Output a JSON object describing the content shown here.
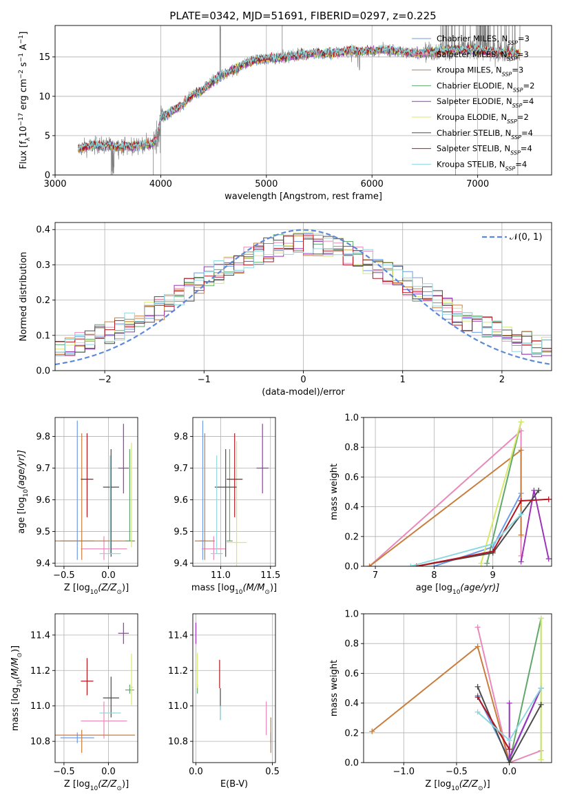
{
  "figure": {
    "title": "PLATE=0342, MJD=51691, FIBERID=0297, z=0.225"
  },
  "colors": {
    "Chabrier MILES": "#6b9ae8",
    "Salpeter MILES": "#e889b9",
    "Kroupa MILES": "#c87d3a",
    "Chabrier ELODIE": "#5fa86a",
    "Salpeter ELODIE": "#9b33b9",
    "Kroupa ELODIE": "#d8e86a",
    "Chabrier STELIB": "#4a4a4a",
    "Salpeter STELIB": "#b3141b",
    "Kroupa STELIB": "#8dd7e0",
    "data": "#7f7f7f",
    "gauss": "#5b88d8",
    "grid": "#b0b0b0"
  },
  "chart_data": [
    {
      "id": "spectrum",
      "type": "line",
      "xlabel": "wavelength [Angstrom, rest frame]",
      "ylabel_parts": [
        "Flux [f",
        "λ",
        "10",
        "−17",
        " erg cm",
        "−2",
        " s",
        "−1",
        " A",
        "−1",
        "]"
      ],
      "xlim": [
        3000,
        7700
      ],
      "ylim": [
        0,
        19
      ],
      "xticks": [
        3000,
        4000,
        5000,
        6000,
        7000
      ],
      "yticks": [
        0,
        5,
        10,
        15
      ],
      "grid": true,
      "legend_position": "top-right",
      "legend": [
        {
          "name": "Chabrier MILES",
          "n": "3"
        },
        {
          "name": "Salpeter MILES",
          "n": "3"
        },
        {
          "name": "Kroupa MILES",
          "n": "3"
        },
        {
          "name": "Chabrier ELODIE",
          "n": "2"
        },
        {
          "name": "Salpeter ELODIE",
          "n": "4"
        },
        {
          "name": "Kroupa ELODIE",
          "n": "2"
        },
        {
          "name": "Chabrier STELIB",
          "n": "4"
        },
        {
          "name": "Salpeter STELIB",
          "n": "4"
        },
        {
          "name": "Kroupa STELIB",
          "n": "4"
        }
      ],
      "continuum": [
        [
          3220,
          3.3
        ],
        [
          3300,
          3.6
        ],
        [
          3400,
          3.8
        ],
        [
          3500,
          3.7
        ],
        [
          3600,
          3.7
        ],
        [
          3700,
          3.6
        ],
        [
          3800,
          3.8
        ],
        [
          3900,
          3.8
        ],
        [
          3960,
          4.5
        ],
        [
          4000,
          7.2
        ],
        [
          4100,
          8.0
        ],
        [
          4200,
          8.8
        ],
        [
          4300,
          10.2
        ],
        [
          4400,
          10.8
        ],
        [
          4500,
          12.0
        ],
        [
          4600,
          12.8
        ],
        [
          4700,
          13.4
        ],
        [
          4800,
          14.2
        ],
        [
          4900,
          14.6
        ],
        [
          5000,
          14.8
        ],
        [
          5100,
          14.9
        ],
        [
          5200,
          15.0
        ],
        [
          5300,
          15.2
        ],
        [
          5400,
          15.4
        ],
        [
          5500,
          15.5
        ],
        [
          5600,
          15.5
        ],
        [
          5700,
          15.6
        ],
        [
          5800,
          15.8
        ],
        [
          5900,
          15.7
        ],
        [
          6000,
          15.8
        ],
        [
          6100,
          15.9
        ],
        [
          6200,
          15.8
        ],
        [
          6300,
          15.6
        ],
        [
          6400,
          15.5
        ],
        [
          6500,
          15.6
        ],
        [
          6600,
          15.7
        ],
        [
          6700,
          15.8
        ],
        [
          6800,
          15.9
        ],
        [
          6900,
          15.9
        ],
        [
          7000,
          15.8
        ],
        [
          7100,
          15.7
        ],
        [
          7200,
          15.6
        ],
        [
          7300,
          15.5
        ],
        [
          7400,
          15.3
        ]
      ]
    },
    {
      "id": "residuals",
      "type": "step",
      "xlabel": "(data-model)/error",
      "ylabel": "Normed distribution",
      "xlim": [
        -2.5,
        2.5
      ],
      "ylim": [
        0,
        0.42
      ],
      "xticks": [
        -2,
        -1,
        0,
        1,
        2
      ],
      "xtick_labels": [
        "−2",
        "−1",
        "0",
        "1",
        "2"
      ],
      "yticks": [
        0.0,
        0.1,
        0.2,
        0.3,
        0.4
      ],
      "ytick_labels": [
        "0.0",
        "0.1",
        "0.2",
        "0.3",
        "0.4"
      ],
      "grid": true,
      "legend_position": "top-right",
      "legend_label": "𝒩(0, 1)",
      "bin_width": 0.1
    },
    {
      "id": "age-vs-Z",
      "type": "errorbar",
      "xlabel_parts": [
        "Z [log",
        "10",
        "(Z/Z",
        "⊙",
        ")]"
      ],
      "ylabel_parts": [
        "age  [log",
        "10",
        "(age/yr)]"
      ],
      "xlim": [
        -0.6,
        0.33
      ],
      "ylim": [
        9.39,
        9.86
      ],
      "xticks": [
        -0.5,
        0.0
      ],
      "xtick_labels": [
        "−0.5",
        "0.0"
      ],
      "yticks": [
        9.4,
        9.5,
        9.6,
        9.7,
        9.8
      ],
      "ytick_labels": [
        "9.4",
        "9.5",
        "9.6",
        "9.7",
        "9.8"
      ],
      "grid": true,
      "points": [
        {
          "model": "Chabrier MILES",
          "x": -0.35,
          "xerr": 0.19,
          "y": 9.47,
          "yerr": [
            0.06,
            0.38
          ]
        },
        {
          "model": "Salpeter MILES",
          "x": -0.05,
          "xerr": 0.26,
          "y": 9.445,
          "yerr": [
            0.035,
            0.04
          ]
        },
        {
          "model": "Kroupa MILES",
          "x": -0.3,
          "xerr": 0.6,
          "y": 9.47,
          "yerr": [
            0.06,
            0.34
          ]
        },
        {
          "model": "Chabrier ELODIE",
          "x": 0.24,
          "xerr": 0.05,
          "y": 9.47,
          "yerr": [
            0.0,
            0.29
          ]
        },
        {
          "model": "Salpeter ELODIE",
          "x": 0.17,
          "xerr": 0.06,
          "y": 9.7,
          "yerr": [
            0.08,
            0.14
          ]
        },
        {
          "model": "Kroupa ELODIE",
          "x": 0.26,
          "xerr": 0.02,
          "y": 9.7,
          "yerr": [
            0.25,
            0.08
          ]
        },
        {
          "model": "Chabrier STELIB",
          "x": 0.03,
          "xerr": 0.09,
          "y": 9.64,
          "yerr": [
            0.22,
            0.12
          ]
        },
        {
          "model": "Salpeter STELIB",
          "x": -0.24,
          "xerr": 0.07,
          "y": 9.665,
          "yerr": [
            0.12,
            0.145
          ]
        },
        {
          "model": "Kroupa STELIB",
          "x": 0.02,
          "xerr": 0.12,
          "y": 9.43,
          "yerr": [
            0.0,
            0.31
          ]
        }
      ]
    },
    {
      "id": "age-vs-mass",
      "type": "errorbar",
      "xlabel_parts": [
        "mass [log",
        "10",
        "(M/M",
        "⊙",
        ")]"
      ],
      "xlim": [
        10.72,
        11.55
      ],
      "ylim": [
        9.39,
        9.86
      ],
      "xticks": [
        11.0,
        11.5
      ],
      "xtick_labels": [
        "11.0",
        "11.5"
      ],
      "yticks": [
        9.4,
        9.5,
        9.6,
        9.7,
        9.8
      ],
      "ytick_labels": [
        "9.4",
        "9.5",
        "9.6",
        "9.7",
        "9.8"
      ],
      "grid": true,
      "points": [
        {
          "model": "Chabrier MILES",
          "x": 10.82,
          "xerr": 0.03,
          "y": 9.47,
          "yerr": [
            0.06,
            0.38
          ]
        },
        {
          "model": "Salpeter MILES",
          "x": 10.93,
          "xerr": 0.12,
          "y": 9.445,
          "yerr": [
            0.035,
            0.04
          ]
        },
        {
          "model": "Kroupa MILES",
          "x": 10.84,
          "xerr": 0.1,
          "y": 9.47,
          "yerr": [
            0.06,
            0.34
          ]
        },
        {
          "model": "Chabrier ELODIE",
          "x": 11.09,
          "xerr": 0.03,
          "y": 9.47,
          "yerr": [
            0.0,
            0.29
          ]
        },
        {
          "model": "Salpeter ELODIE",
          "x": 11.42,
          "xerr": 0.06,
          "y": 9.7,
          "yerr": [
            0.08,
            0.14
          ]
        },
        {
          "model": "Kroupa ELODIE",
          "x": 11.16,
          "xerr": 0.1,
          "y": 9.465,
          "yerr": [
            0.24,
            0.32
          ]
        },
        {
          "model": "Chabrier STELIB",
          "x": 11.05,
          "xerr": 0.11,
          "y": 9.64,
          "yerr": [
            0.22,
            0.12
          ]
        },
        {
          "model": "Salpeter STELIB",
          "x": 11.14,
          "xerr": 0.08,
          "y": 9.665,
          "yerr": [
            0.12,
            0.145
          ]
        },
        {
          "model": "Kroupa STELIB",
          "x": 10.96,
          "xerr": 0.06,
          "y": 9.43,
          "yerr": [
            0.0,
            0.31
          ]
        }
      ]
    },
    {
      "id": "weight-vs-age",
      "type": "line",
      "xlabel_parts": [
        "age  [log",
        "10",
        "(age/yr)]"
      ],
      "ylabel": "mass weight",
      "xlim": [
        6.8,
        10.0
      ],
      "ylim": [
        0.0,
        1.0
      ],
      "xticks": [
        7,
        8,
        9
      ],
      "xtick_labels": [
        "7",
        "8",
        "9"
      ],
      "yticks": [
        0.0,
        0.2,
        0.4,
        0.6,
        0.8,
        1.0
      ],
      "ytick_labels": [
        "0.0",
        "0.2",
        "0.4",
        "0.6",
        "0.8",
        "1.0"
      ],
      "grid": true,
      "series": [
        {
          "model": "Chabrier MILES",
          "x": [
            8.0,
            9.0,
            9.48
          ],
          "y": [
            0.0,
            0.13,
            0.49
          ]
        },
        {
          "model": "Salpeter MILES",
          "x": [
            6.9,
            9.48,
            9.48
          ],
          "y": [
            0.0,
            0.91,
            0.07
          ]
        },
        {
          "model": "Kroupa MILES",
          "x": [
            6.9,
            9.48,
            9.48
          ],
          "y": [
            0.0,
            0.78,
            0.21
          ]
        },
        {
          "model": "Chabrier ELODIE",
          "x": [
            8.9,
            9.48
          ],
          "y": [
            0.02,
            0.97
          ]
        },
        {
          "model": "Salpeter ELODIE",
          "x": [
            9.48,
            9.7,
            9.95
          ],
          "y": [
            0.03,
            0.51,
            0.05
          ]
        },
        {
          "model": "Kroupa ELODIE",
          "x": [
            8.8,
            9.48
          ],
          "y": [
            0.02,
            0.97
          ]
        },
        {
          "model": "Chabrier STELIB",
          "x": [
            7.7,
            9.0,
            9.78
          ],
          "y": [
            0.0,
            0.09,
            0.51
          ]
        },
        {
          "model": "Salpeter STELIB",
          "x": [
            7.7,
            9.0,
            9.48,
            9.95
          ],
          "y": [
            0.0,
            0.1,
            0.44,
            0.45
          ]
        },
        {
          "model": "Kroupa STELIB",
          "x": [
            7.6,
            9.0,
            9.48
          ],
          "y": [
            0.0,
            0.15,
            0.35
          ]
        }
      ]
    },
    {
      "id": "mass-vs-Z",
      "type": "errorbar",
      "xlabel_parts": [
        "Z [log",
        "10",
        "(Z/Z",
        "⊙",
        ")]"
      ],
      "ylabel_parts": [
        "mass [log",
        "10",
        "(M/M",
        "⊙",
        ")]"
      ],
      "xlim": [
        -0.6,
        0.33
      ],
      "ylim": [
        10.68,
        11.52
      ],
      "xticks": [
        -0.5,
        0.0
      ],
      "xtick_labels": [
        "−0.5",
        "0.0"
      ],
      "yticks": [
        10.8,
        11.0,
        11.2,
        11.4
      ],
      "ytick_labels": [
        "10.8",
        "11.0",
        "11.2",
        "11.4"
      ],
      "grid": true,
      "points": [
        {
          "model": "Chabrier MILES",
          "x": -0.35,
          "xerr": 0.19,
          "y": 10.82,
          "yerr": [
            0.03,
            0.03
          ]
        },
        {
          "model": "Salpeter MILES",
          "x": -0.05,
          "xerr": 0.26,
          "y": 10.915,
          "yerr": [
            0.1,
            0.11
          ]
        },
        {
          "model": "Kroupa MILES",
          "x": -0.3,
          "xerr": 0.6,
          "y": 10.835,
          "yerr": [
            0.1,
            0.03
          ]
        },
        {
          "model": "Chabrier ELODIE",
          "x": 0.24,
          "xerr": 0.05,
          "y": 11.09,
          "yerr": [
            0.02,
            0.03
          ]
        },
        {
          "model": "Salpeter ELODIE",
          "x": 0.17,
          "xerr": 0.06,
          "y": 11.41,
          "yerr": [
            0.06,
            0.06
          ]
        },
        {
          "model": "Kroupa ELODIE",
          "x": 0.26,
          "xerr": 0.02,
          "y": 11.105,
          "yerr": [
            0.1,
            0.19
          ]
        },
        {
          "model": "Chabrier STELIB",
          "x": 0.03,
          "xerr": 0.09,
          "y": 11.045,
          "yerr": [
            0.11,
            0.12
          ]
        },
        {
          "model": "Salpeter STELIB",
          "x": -0.24,
          "xerr": 0.07,
          "y": 11.14,
          "yerr": [
            0.08,
            0.13
          ]
        },
        {
          "model": "Kroupa STELIB",
          "x": 0.02,
          "xerr": 0.12,
          "y": 10.96,
          "yerr": [
            0.0,
            0.0
          ]
        }
      ]
    },
    {
      "id": "mass-vs-EBV",
      "type": "errorbar",
      "xlabel": "E(B-V)",
      "xlim": [
        -0.02,
        0.52
      ],
      "ylim": [
        10.68,
        11.52
      ],
      "xticks": [
        0.0,
        0.5
      ],
      "xtick_labels": [
        "0.0",
        "0.5"
      ],
      "yticks": [
        10.8,
        11.0,
        11.2,
        11.4
      ],
      "ytick_labels": [
        "10.8",
        "11.0",
        "11.2",
        "11.4"
      ],
      "grid": true,
      "points": [
        {
          "model": "Chabrier MILES",
          "x": 0.49,
          "xerr": 0.0,
          "y": 10.82,
          "yerr": [
            0.03,
            0.03
          ]
        },
        {
          "model": "Salpeter MILES",
          "x": 0.46,
          "xerr": 0.0,
          "y": 10.915,
          "yerr": [
            0.08,
            0.11
          ]
        },
        {
          "model": "Kroupa MILES",
          "x": 0.49,
          "xerr": 0.0,
          "y": 10.835,
          "yerr": [
            0.1,
            0.1
          ]
        },
        {
          "model": "Chabrier ELODIE",
          "x": 0.01,
          "xerr": 0.0,
          "y": 11.09,
          "yerr": [
            0.02,
            0.03
          ]
        },
        {
          "model": "Salpeter ELODIE",
          "x": 0.0,
          "xerr": 0.0,
          "y": 11.41,
          "yerr": [
            0.06,
            0.06
          ]
        },
        {
          "model": "Kroupa ELODIE",
          "x": 0.01,
          "xerr": 0.0,
          "y": 11.2,
          "yerr": [
            0.1,
            0.1
          ]
        },
        {
          "model": "Chabrier STELIB",
          "x": 0.16,
          "xerr": 0.0,
          "y": 11.0,
          "yerr": [
            0.08,
            0.1
          ]
        },
        {
          "model": "Salpeter STELIB",
          "x": 0.155,
          "xerr": 0.0,
          "y": 11.18,
          "yerr": [
            0.08,
            0.08
          ]
        },
        {
          "model": "Kroupa STELIB",
          "x": 0.16,
          "xerr": 0.0,
          "y": 10.96,
          "yerr": [
            0.04,
            0.04
          ]
        }
      ]
    },
    {
      "id": "weight-vs-Z",
      "type": "line",
      "xlabel_parts": [
        "Z [log",
        "10",
        "(Z/Z",
        "⊙",
        ")]"
      ],
      "ylabel": "mass weight",
      "xlim": [
        -1.38,
        0.4
      ],
      "ylim": [
        0.0,
        1.0
      ],
      "xticks": [
        -1.0,
        -0.5,
        0.0
      ],
      "xtick_labels": [
        "−1.0",
        "−0.5",
        "0.0"
      ],
      "yticks": [
        0.0,
        0.2,
        0.4,
        0.6,
        0.8,
        1.0
      ],
      "ytick_labels": [
        "0.0",
        "0.2",
        "0.4",
        "0.6",
        "0.8",
        "1.0"
      ],
      "grid": true,
      "series": [
        {
          "model": "Chabrier MILES",
          "x": [
            -0.3,
            0.0,
            0.3
          ],
          "y": [
            0.45,
            0.02,
            0.5
          ]
        },
        {
          "model": "Salpeter MILES",
          "x": [
            -0.3,
            0.0,
            0.3
          ],
          "y": [
            0.91,
            0.0,
            0.08
          ]
        },
        {
          "model": "Kroupa MILES",
          "x": [
            -1.3,
            -0.3,
            0.0
          ],
          "y": [
            0.21,
            0.78,
            0.0
          ]
        },
        {
          "model": "Chabrier ELODIE",
          "x": [
            0.0,
            0.3,
            0.3
          ],
          "y": [
            0.0,
            0.97,
            0.02
          ]
        },
        {
          "model": "Salpeter ELODIE",
          "x": [
            0.0,
            0.0,
            0.3
          ],
          "y": [
            0.4,
            0.03,
            0.5
          ]
        },
        {
          "model": "Kroupa ELODIE",
          "x": [
            0.3,
            0.3
          ],
          "y": [
            0.97,
            0.02
          ]
        },
        {
          "model": "Chabrier STELIB",
          "x": [
            -0.3,
            0.0,
            0.3
          ],
          "y": [
            0.51,
            0.0,
            0.39
          ]
        },
        {
          "model": "Salpeter STELIB",
          "x": [
            -0.3,
            0.0
          ],
          "y": [
            0.44,
            0.09
          ]
        },
        {
          "model": "Kroupa STELIB",
          "x": [
            -0.3,
            0.0,
            0.3
          ],
          "y": [
            0.34,
            0.15,
            0.5
          ]
        }
      ]
    }
  ]
}
